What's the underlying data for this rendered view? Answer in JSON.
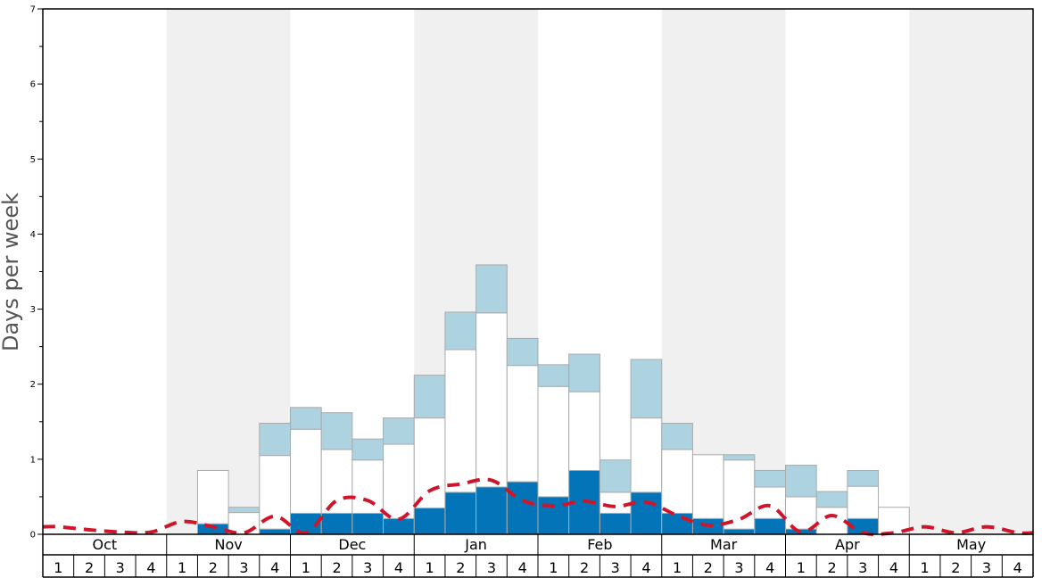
{
  "chart_data": {
    "type": "bar",
    "ylabel": "Days per week",
    "ylim": [
      0,
      7
    ],
    "yticks": [
      "0",
      "1",
      "2",
      "3",
      "4",
      "5",
      "6",
      "7"
    ],
    "months": [
      "Oct",
      "Nov",
      "Dec",
      "Jan",
      "Feb",
      "Mar",
      "Apr",
      "May"
    ],
    "weeks_per_month": [
      "1",
      "2",
      "3",
      "4"
    ],
    "colors": {
      "bottom_segment": "#0474b8",
      "middle_segment": "#ffffff",
      "top_segment": "#aed3e0",
      "bar_outline": "#aaaaaa",
      "average_line": "#d0152a",
      "shaded_month": "#f0f0f0"
    },
    "stacked_bars": [
      {
        "bottom": 0,
        "middle": 0,
        "top": 0
      },
      {
        "bottom": 0,
        "middle": 0,
        "top": 0
      },
      {
        "bottom": 0,
        "middle": 0,
        "top": 0
      },
      {
        "bottom": 0,
        "middle": 0,
        "top": 0
      },
      {
        "bottom": 0,
        "middle": 0,
        "top": 0
      },
      {
        "bottom": 0.14,
        "middle": 0.71,
        "top": 0
      },
      {
        "bottom": 0,
        "middle": 0.29,
        "top": 0.07
      },
      {
        "bottom": 0.07,
        "middle": 0.98,
        "top": 0.43
      },
      {
        "bottom": 0.28,
        "middle": 1.12,
        "top": 0.29
      },
      {
        "bottom": 0.28,
        "middle": 0.85,
        "top": 0.49
      },
      {
        "bottom": 0.28,
        "middle": 0.71,
        "top": 0.28
      },
      {
        "bottom": 0.21,
        "middle": 0.99,
        "top": 0.35
      },
      {
        "bottom": 0.35,
        "middle": 1.2,
        "top": 0.57
      },
      {
        "bottom": 0.56,
        "middle": 1.9,
        "top": 0.5
      },
      {
        "bottom": 0.63,
        "middle": 2.32,
        "top": 0.64
      },
      {
        "bottom": 0.7,
        "middle": 1.55,
        "top": 0.36
      },
      {
        "bottom": 0.5,
        "middle": 1.47,
        "top": 0.29
      },
      {
        "bottom": 0.85,
        "middle": 1.05,
        "top": 0.5
      },
      {
        "bottom": 0.28,
        "middle": 0.28,
        "top": 0.43
      },
      {
        "bottom": 0.56,
        "middle": 0.99,
        "top": 0.78
      },
      {
        "bottom": 0.28,
        "middle": 0.85,
        "top": 0.35
      },
      {
        "bottom": 0.21,
        "middle": 0.85,
        "top": 0
      },
      {
        "bottom": 0.07,
        "middle": 0.92,
        "top": 0.07
      },
      {
        "bottom": 0.21,
        "middle": 0.42,
        "top": 0.22
      },
      {
        "bottom": 0.07,
        "middle": 0.43,
        "top": 0.42
      },
      {
        "bottom": 0,
        "middle": 0.36,
        "top": 0.21
      },
      {
        "bottom": 0.21,
        "middle": 0.43,
        "top": 0.21
      },
      {
        "bottom": 0,
        "middle": 0.36,
        "top": 0
      },
      {
        "bottom": 0,
        "middle": 0,
        "top": 0
      },
      {
        "bottom": 0,
        "middle": 0,
        "top": 0
      },
      {
        "bottom": 0,
        "middle": 0,
        "top": 0
      },
      {
        "bottom": 0,
        "middle": 0,
        "top": 0
      }
    ],
    "average_line": [
      0.1,
      0.06,
      0.03,
      0.03,
      0.17,
      0.1,
      0.02,
      0.24,
      0.02,
      0.45,
      0.45,
      0.2,
      0.58,
      0.67,
      0.72,
      0.45,
      0.38,
      0.44,
      0.37,
      0.43,
      0.25,
      0.12,
      0.2,
      0.38,
      0.03,
      0.25,
      0.02,
      0.02,
      0.1,
      0.02,
      0.1,
      0.02
    ]
  }
}
